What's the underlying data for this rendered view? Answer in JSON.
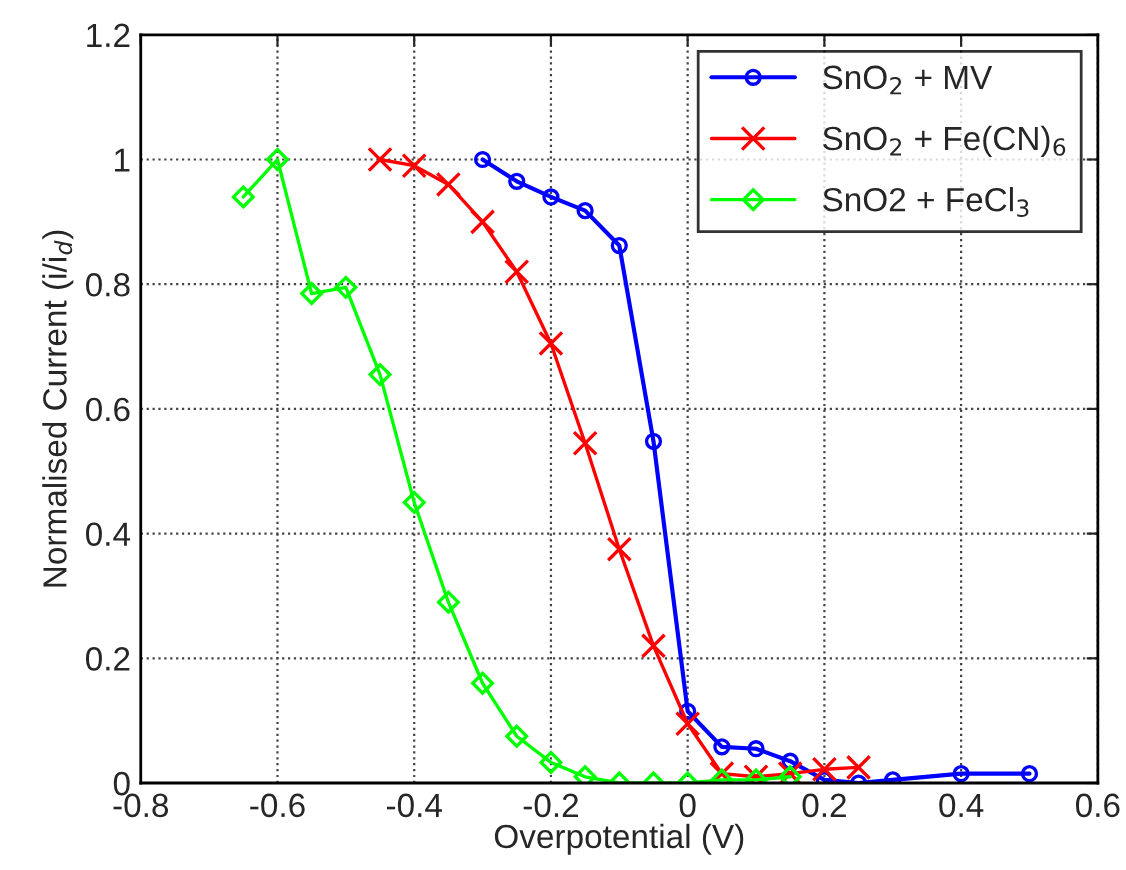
{
  "chart_data": {
    "type": "line",
    "xlabel": "Overpotential (V)",
    "ylabel": "Normalised Current (i/i$_{d}$)",
    "xlim": [
      -0.8,
      0.6
    ],
    "xticks": [
      -0.8,
      -0.6,
      -0.4,
      -0.2,
      0,
      0.2,
      0.4,
      0.6
    ],
    "ylim": [
      0,
      1.2
    ],
    "yticks": [
      0,
      0.2,
      0.4,
      0.6,
      0.8,
      1,
      1.2
    ],
    "grid": true,
    "legend": "top right",
    "series": [
      {
        "name": "SnO$_{2}$ + MV",
        "color": "#0000ff",
        "marker": "circle",
        "x": [
          -0.3,
          -0.25,
          -0.2,
          -0.15,
          -0.1,
          -0.05,
          0,
          0.05,
          0.1,
          0.15,
          0.2,
          0.25,
          0.3,
          0.4,
          0.5
        ],
        "values": [
          1.0,
          0.965,
          0.94,
          0.918,
          0.862,
          0.548,
          0.115,
          0.058,
          0.055,
          0.035,
          0.005,
          0.0,
          0.005,
          0.015,
          0.015
        ]
      },
      {
        "name": "SnO$_{2}$ + Fe(CN)$_{6}$",
        "color": "#ff0000",
        "marker": "cross",
        "x": [
          -0.45,
          -0.4,
          -0.35,
          -0.3,
          -0.25,
          -0.2,
          -0.15,
          -0.1,
          -0.05,
          0,
          0.05,
          0.1,
          0.15,
          0.2,
          0.25
        ],
        "values": [
          1.0,
          0.99,
          0.96,
          0.9,
          0.82,
          0.705,
          0.545,
          0.375,
          0.22,
          0.095,
          0.015,
          0.01,
          0.015,
          0.022,
          0.025
        ]
      },
      {
        "name": "SnO2 + FeCl$_{3}$",
        "color": "#00ff00",
        "marker": "diamond",
        "x": [
          -0.65,
          -0.6,
          -0.55,
          -0.5,
          -0.45,
          -0.4,
          -0.35,
          -0.3,
          -0.25,
          -0.2,
          -0.15,
          -0.1,
          -0.05,
          0,
          0.05,
          0.1,
          0.15
        ],
        "values": [
          0.94,
          1.0,
          0.785,
          0.795,
          0.655,
          0.45,
          0.29,
          0.16,
          0.075,
          0.033,
          0.01,
          0.0,
          0.0,
          0.0,
          0.005,
          0.005,
          0.01
        ]
      }
    ]
  }
}
